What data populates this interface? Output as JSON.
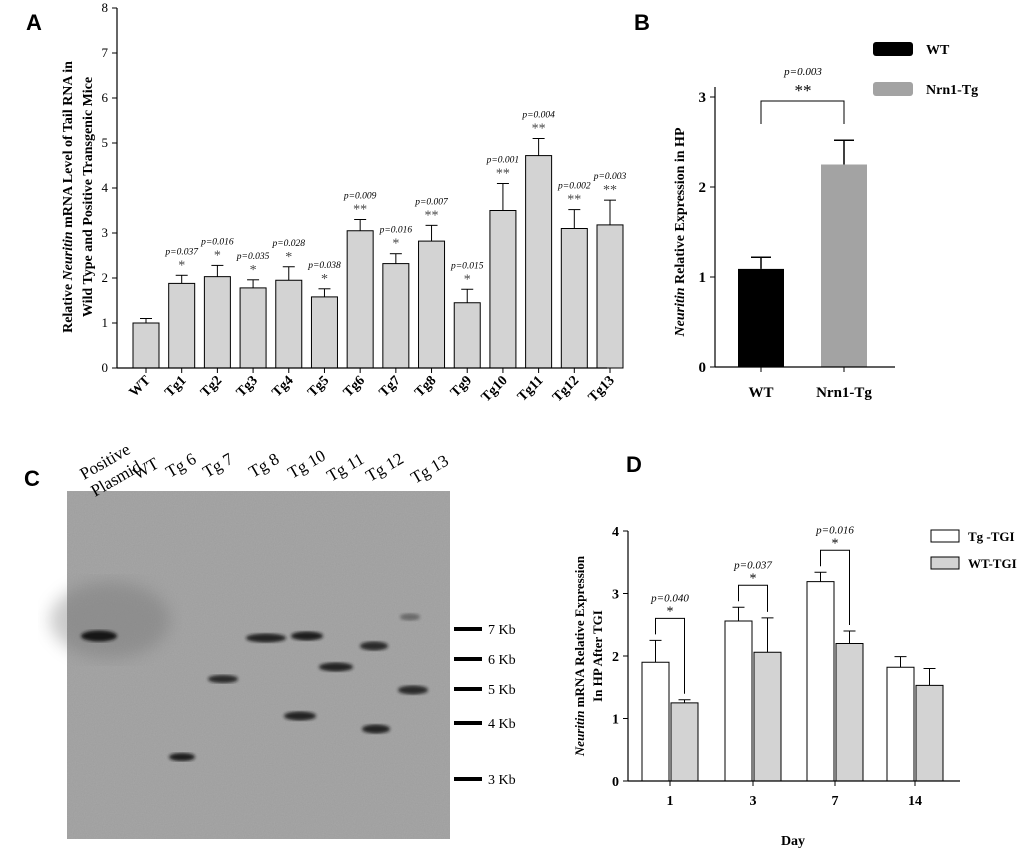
{
  "panels": {
    "a": "A",
    "b": "B",
    "c": "C",
    "d": "D"
  },
  "chart_data": [
    {
      "id": "A",
      "type": "bar",
      "ylabel_parts": [
        "Relative ",
        "Neuritin",
        " mRNA Level of Tail RNA in"
      ],
      "ylabel_line2": "Wild Type and Positive Transgenic Mice",
      "categories": [
        "WT",
        "Tg1",
        "Tg2",
        "Tg3",
        "Tg4",
        "Tg5",
        "Tg6",
        "Tg7",
        "Tg8",
        "Tg9",
        "Tg10",
        "Tg11",
        "Tg12",
        "Tg13"
      ],
      "values": [
        1.0,
        1.88,
        2.03,
        1.78,
        1.95,
        1.58,
        3.05,
        2.32,
        2.82,
        1.45,
        3.5,
        4.72,
        3.1,
        3.18
      ],
      "errors": [
        0.1,
        0.18,
        0.25,
        0.18,
        0.3,
        0.18,
        0.25,
        0.22,
        0.35,
        0.3,
        0.6,
        0.38,
        0.42,
        0.55
      ],
      "pvalues": [
        "",
        "p=0.037",
        "p=0.016",
        "p=0.035",
        "p=0.028",
        "p=0.038",
        "p=0.009",
        "p=0.016",
        "p=0.007",
        "p=0.015",
        "p=0.001",
        "p=0.004",
        "p=0.002",
        "p=0.003"
      ],
      "stars": [
        "",
        "*",
        "*",
        "*",
        "*",
        "*",
        "**",
        "*",
        "**",
        "*",
        "**",
        "**",
        "**",
        "**"
      ],
      "ylim": [
        0,
        8
      ],
      "yticks": [
        "0",
        "1",
        "2",
        "3",
        "4",
        "5",
        "6",
        "7",
        "8"
      ],
      "bar_color": "#d3d3d3"
    },
    {
      "id": "B",
      "type": "bar",
      "ylabel_parts": [
        "Neuritin",
        " Relative Expression in HP"
      ],
      "categories": [
        "WT",
        "Nrn1-Tg"
      ],
      "values": [
        1.09,
        2.25
      ],
      "errors": [
        0.13,
        0.27
      ],
      "colors": [
        "#000000",
        "#a3a3a3"
      ],
      "ylim": [
        0,
        3
      ],
      "yticks": [
        "0",
        "1",
        "2",
        "3"
      ],
      "legend": [
        "WT",
        "Nrn1-Tg"
      ],
      "pvalue": "p=0.003",
      "stars": "**"
    },
    {
      "id": "D",
      "type": "bar",
      "ylabel_parts": [
        "Neuritin",
        " mRNA Relative Expression"
      ],
      "ylabel_line2": "In HP After TGI",
      "xlabel": "Day",
      "categories": [
        "1",
        "3",
        "7",
        "14"
      ],
      "series": [
        {
          "name": "Tg -TGI",
          "values": [
            1.9,
            2.56,
            3.19,
            1.82
          ],
          "errors": [
            0.35,
            0.22,
            0.15,
            0.17
          ],
          "color": "#ffffff"
        },
        {
          "name": "WT-TGI",
          "values": [
            1.25,
            2.06,
            2.2,
            1.53
          ],
          "errors": [
            0.05,
            0.55,
            0.2,
            0.27
          ],
          "color": "#d3d3d3"
        }
      ],
      "pvalues": [
        "p=0.040",
        "p=0.037",
        "p=0.016",
        ""
      ],
      "stars": [
        "*",
        "*",
        "*",
        ""
      ],
      "ylim": [
        0,
        4
      ],
      "yticks": [
        "0",
        "1",
        "2",
        "3",
        "4"
      ]
    }
  ],
  "blot": {
    "lanes": [
      "Positive",
      "Plasmid",
      "WT",
      "Tg 6",
      "Tg 7",
      "Tg 8",
      "Tg 10",
      "Tg 11",
      "Tg 12",
      "Tg 13"
    ],
    "markers": [
      "7 Kb",
      "6 Kb",
      "5 Kb",
      "4 Kb",
      "3 Kb"
    ]
  }
}
